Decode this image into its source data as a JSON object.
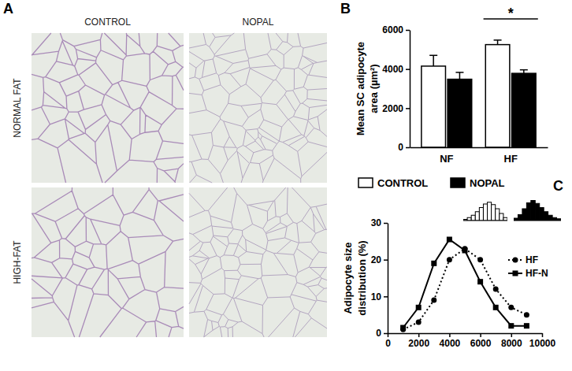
{
  "panel_labels": [
    "A",
    "B",
    "C"
  ],
  "micrographs": {
    "columns": [
      "CONTROL",
      "NOPAL"
    ],
    "rows": [
      "NORMAL FAT",
      "HIGH-FAT"
    ]
  },
  "chart_data": [
    {
      "type": "bar",
      "categories": [
        "NF",
        "HF"
      ],
      "series": [
        {
          "name": "CONTROL",
          "color": "#ffffff",
          "values": [
            4150,
            5250
          ],
          "errors": [
            550,
            230
          ]
        },
        {
          "name": "NOPAL",
          "color": "#000000",
          "values": [
            3480,
            3780
          ],
          "errors": [
            350,
            180
          ]
        }
      ],
      "ylabel": [
        "Mean SC adipocyte",
        "area (µm²)"
      ],
      "ylim": [
        0,
        6000
      ],
      "yticks": [
        0,
        2000,
        4000,
        6000
      ],
      "annotations": [
        {
          "text": "*",
          "category": "HF"
        }
      ],
      "legend": "bottom"
    },
    {
      "type": "line",
      "x": [
        1000,
        2000,
        3000,
        4000,
        5000,
        6000,
        7000,
        8000,
        9000
      ],
      "series": [
        {
          "name": "HF",
          "color": "#000000",
          "marker": "circle",
          "line_style": "dotted",
          "values": [
            1,
            3,
            9,
            20,
            23,
            20,
            12,
            7,
            5
          ]
        },
        {
          "name": "HF-N",
          "color": "#000000",
          "marker": "square",
          "line_style": "solid",
          "values": [
            1.5,
            7,
            19,
            25.5,
            22.5,
            14,
            7,
            2,
            2
          ]
        }
      ],
      "ylabel": [
        "Adipocyte size",
        "distribution (%)"
      ],
      "xlim": [
        0,
        10000
      ],
      "xticks": [
        0,
        2000,
        4000,
        6000,
        8000,
        10000
      ],
      "ylim": [
        0,
        30
      ],
      "yticks": [
        0,
        10,
        20,
        30
      ],
      "legend": "right"
    },
    {
      "type": "bar",
      "categories": [
        null,
        null,
        null,
        null,
        null,
        null,
        null,
        null,
        null,
        null,
        null
      ],
      "values": [
        2,
        5,
        9,
        15,
        22,
        28,
        31,
        27,
        20,
        12,
        5
      ],
      "color": "#ffffff",
      "ylim": [
        0,
        40
      ],
      "tick_labels": false
    },
    {
      "type": "bar",
      "categories": [
        null,
        null,
        null,
        null,
        null,
        null,
        null,
        null,
        null,
        null,
        null
      ],
      "values": [
        4,
        10,
        20,
        30,
        34,
        29,
        22,
        15,
        9,
        5,
        3
      ],
      "color": "#000000",
      "ylim": [
        0,
        40
      ],
      "tick_labels": false
    }
  ]
}
